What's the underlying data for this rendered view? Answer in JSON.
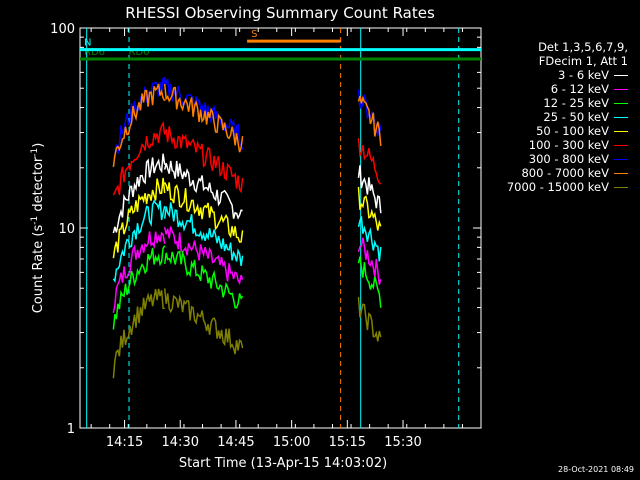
{
  "chart_data": {
    "type": "line",
    "title": "RHESSI Observing Summary Count Rates",
    "xlabel": "Start Time (13-Apr-15 14:03:02)",
    "ylabel": "Count Rate (s",
    "ylabel_sup": "-1",
    "ylabel_rest": " detector",
    "ylabel_sup2": "-1",
    "ylabel_end": ")",
    "yscale": "log",
    "ylim": [
      1,
      100
    ],
    "xlim_minutes": [
      14.05,
      15.85
    ],
    "y_ticks": [
      {
        "value": 1,
        "label": "1"
      },
      {
        "value": 10,
        "label": "10"
      },
      {
        "value": 100,
        "label": "100"
      }
    ],
    "x_ticks": [
      {
        "value": 14.25,
        "label": "14:15"
      },
      {
        "value": 14.5,
        "label": "14:30"
      },
      {
        "value": 14.75,
        "label": "14:45"
      },
      {
        "value": 15.0,
        "label": "15:00"
      },
      {
        "value": 15.25,
        "label": "15:15"
      },
      {
        "value": 15.5,
        "label": "15:30"
      }
    ],
    "legend_header": [
      "Det 1,3,5,6,7,9,",
      "FDecim 1, Att 1"
    ],
    "series": [
      {
        "name": "3 - 6 keV",
        "color": "#ffffff",
        "peak": 21
      },
      {
        "name": "6 - 12 keV",
        "color": "#ff00ff",
        "peak": 9.5
      },
      {
        "name": "12 - 25 keV",
        "color": "#00ff00",
        "peak": 7.5
      },
      {
        "name": "25 - 50 keV",
        "color": "#00ffff",
        "peak": 12.5
      },
      {
        "name": "50 - 100 keV",
        "color": "#ffff00",
        "peak": 16
      },
      {
        "name": "100 - 300 keV",
        "color": "#ff0000",
        "peak": 30
      },
      {
        "name": "300 - 800 keV",
        "color": "#0000ff",
        "peak": 51
      },
      {
        "name": "800 - 7000 keV",
        "color": "#ff8000",
        "peak": 48
      },
      {
        "name": "7000 - 15000 keV",
        "color": "#808000",
        "peak": 4.5
      }
    ],
    "data_segments": [
      {
        "start": 14.2,
        "end": 14.43,
        "kind": "rise"
      },
      {
        "start": 14.43,
        "end": 14.78,
        "kind": "fall"
      },
      {
        "start": 15.3,
        "end": 15.4,
        "kind": "short"
      }
    ],
    "flag_bars": [
      {
        "label": "RD6",
        "color": "#008000",
        "y": 70,
        "x0": 14.05,
        "x1": 15.9
      },
      {
        "label": "RD0",
        "color": "#008000",
        "y": 70,
        "x0": 14.25,
        "x1": 15.9
      },
      {
        "label": "N",
        "color": "#00ffff",
        "y": 78,
        "x0": 14.05,
        "x1": 15.85
      },
      {
        "label": "S",
        "color": "#ff8000",
        "y": 86,
        "x0": 14.8,
        "x1": 15.22
      }
    ],
    "vlines": [
      {
        "x": 14.08,
        "color": "#00ffff",
        "style": "solid"
      },
      {
        "x": 14.27,
        "color": "#00ffff",
        "style": "dashed"
      },
      {
        "x": 15.22,
        "color": "#ff8000",
        "style": "dashed"
      },
      {
        "x": 15.31,
        "color": "#00ffff",
        "style": "solid"
      },
      {
        "x": 15.75,
        "color": "#00ffff",
        "style": "dashed"
      }
    ],
    "grid": false,
    "legend_position": "right"
  },
  "timestamp": "28-Oct-2021 08:49"
}
